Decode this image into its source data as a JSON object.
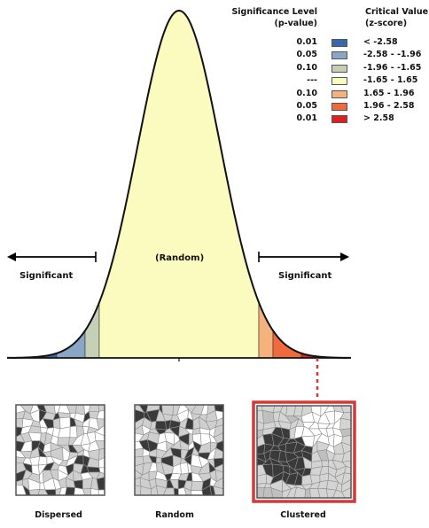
{
  "legend": {
    "sig_header_line1": "Significance Level",
    "sig_header_line2": "(p-value)",
    "crit_header_line1": "Critical Value",
    "crit_header_line2": "(z-score)",
    "rows": [
      {
        "p": "0.01",
        "range": "< -2.58",
        "color": "#3568b0"
      },
      {
        "p": "0.05",
        "range": "-2.58 - -1.96",
        "color": "#8aa6c6"
      },
      {
        "p": "0.10",
        "range": "-1.96 - -1.65",
        "color": "#c4cfb6"
      },
      {
        "p": "---",
        "range": "-1.65 - 1.65",
        "color": "#fbfbbf"
      },
      {
        "p": "0.10",
        "range": "1.65 - 1.96",
        "color": "#f5b27c"
      },
      {
        "p": "0.05",
        "range": "1.96 - 2.58",
        "color": "#ef6a3c"
      },
      {
        "p": "0.01",
        "range": "> 2.58",
        "color": "#e01f1f"
      }
    ]
  },
  "curve": {
    "center_label": "(Random)",
    "left_label": "Significant",
    "right_label": "Significant"
  },
  "maps": {
    "dispersed_label": "Dispersed",
    "random_label": "Random",
    "clustered_label": "Clustered",
    "highlight_color": "#d23a3a"
  }
}
